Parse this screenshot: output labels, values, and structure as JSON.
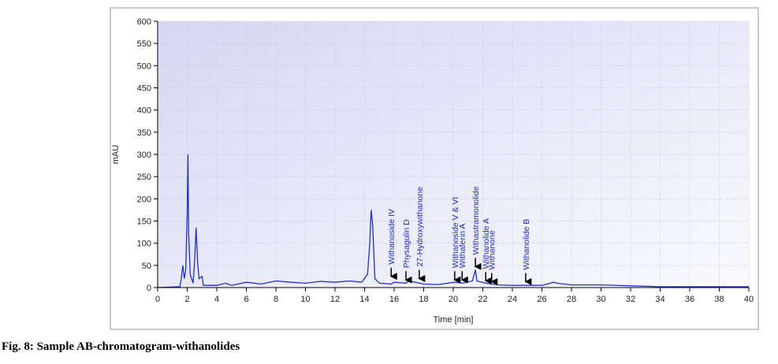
{
  "chart_data": {
    "type": "line",
    "title": "Fig. 8: Sample AB-chromatogram-withanolides",
    "xlabel": "Time [min]",
    "ylabel": "mAU",
    "xlim": [
      0,
      40
    ],
    "ylim": [
      0,
      600
    ],
    "xticks": [
      0,
      2,
      4,
      6,
      8,
      10,
      12,
      14,
      16,
      18,
      20,
      22,
      24,
      26,
      28,
      30,
      32,
      34,
      36,
      38,
      40
    ],
    "yticks": [
      0,
      50,
      100,
      150,
      200,
      250,
      300,
      350,
      400,
      450,
      500,
      550,
      600
    ],
    "grid": true,
    "series": [
      {
        "name": "Sample AB",
        "color": "#1f2fd6",
        "x": [
          0,
          1.5,
          1.6,
          1.7,
          1.8,
          1.9,
          2.0,
          2.05,
          2.1,
          2.2,
          2.4,
          2.5,
          2.6,
          2.7,
          2.8,
          3.0,
          3.1,
          4,
          4.6,
          5,
          6,
          7,
          8,
          9,
          10,
          11,
          12,
          13,
          13.8,
          14.2,
          14.35,
          14.45,
          14.55,
          14.7,
          15,
          15.8,
          16,
          16.8,
          17,
          17.7,
          18,
          19,
          20.1,
          20.6,
          21.3,
          21.5,
          21.6,
          22.2,
          23,
          24,
          25,
          26,
          26.8,
          27,
          28,
          30,
          33,
          34,
          40
        ],
        "values": [
          0,
          2,
          20,
          50,
          20,
          40,
          165,
          300,
          120,
          30,
          10,
          60,
          135,
          60,
          20,
          25,
          5,
          5,
          10,
          5,
          12,
          8,
          15,
          12,
          10,
          14,
          12,
          15,
          12,
          30,
          100,
          175,
          140,
          20,
          10,
          8,
          12,
          10,
          15,
          10,
          8,
          7,
          12,
          10,
          15,
          40,
          15,
          10,
          6,
          5,
          5,
          5,
          12,
          10,
          6,
          6,
          3,
          2,
          2
        ]
      }
    ],
    "annotations": [
      {
        "text": "Withanoside IV",
        "x": 15.8,
        "y": 20
      },
      {
        "text": "Physagulin D",
        "x": 16.8,
        "y": 12
      },
      {
        "text": "27-Hydroxywithanone",
        "x": 17.7,
        "y": 15
      },
      {
        "text": "Withanoside V & VI",
        "x": 20.1,
        "y": 12
      },
      {
        "text": "Withaferin A",
        "x": 20.6,
        "y": 12
      },
      {
        "text": "Withastramonolide",
        "x": 21.5,
        "y": 42
      },
      {
        "text": "Withanolide A",
        "x": 22.2,
        "y": 10
      },
      {
        "text": "Withanone",
        "x": 22.6,
        "y": 8
      },
      {
        "text": "Withanolide B",
        "x": 24.9,
        "y": 8
      }
    ]
  }
}
